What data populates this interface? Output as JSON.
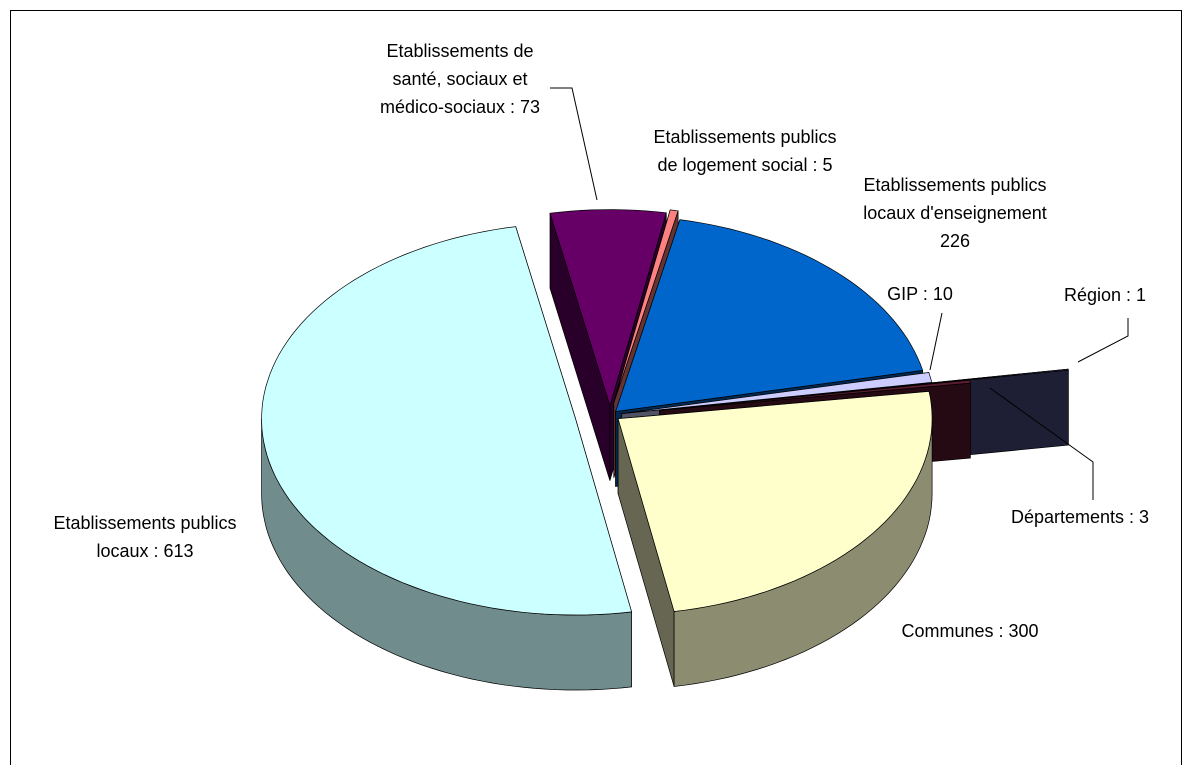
{
  "chart_data": {
    "type": "pie3d",
    "categories": [
      [
        "Etablissements de",
        "santé, sociaux et",
        "médico-sociaux : 73"
      ],
      [
        "Etablissements publics",
        "de logement social : 5"
      ],
      [
        "Etablissements publics",
        "locaux d'enseignement",
        "226"
      ],
      [
        "GIP : 10"
      ],
      [
        "Région : 1"
      ],
      [
        "Départements : 3"
      ],
      [
        "Communes : 300"
      ],
      [
        "Etablissements publics",
        "locaux : 613"
      ]
    ],
    "values": [
      73,
      5,
      226,
      10,
      1,
      3,
      300,
      613
    ],
    "colors": [
      "#660066",
      "#ff8080",
      "#0066cc",
      "#ccccff",
      "#4a4a85",
      "#5c1a33",
      "#ffffcc",
      "#ccffff"
    ]
  }
}
